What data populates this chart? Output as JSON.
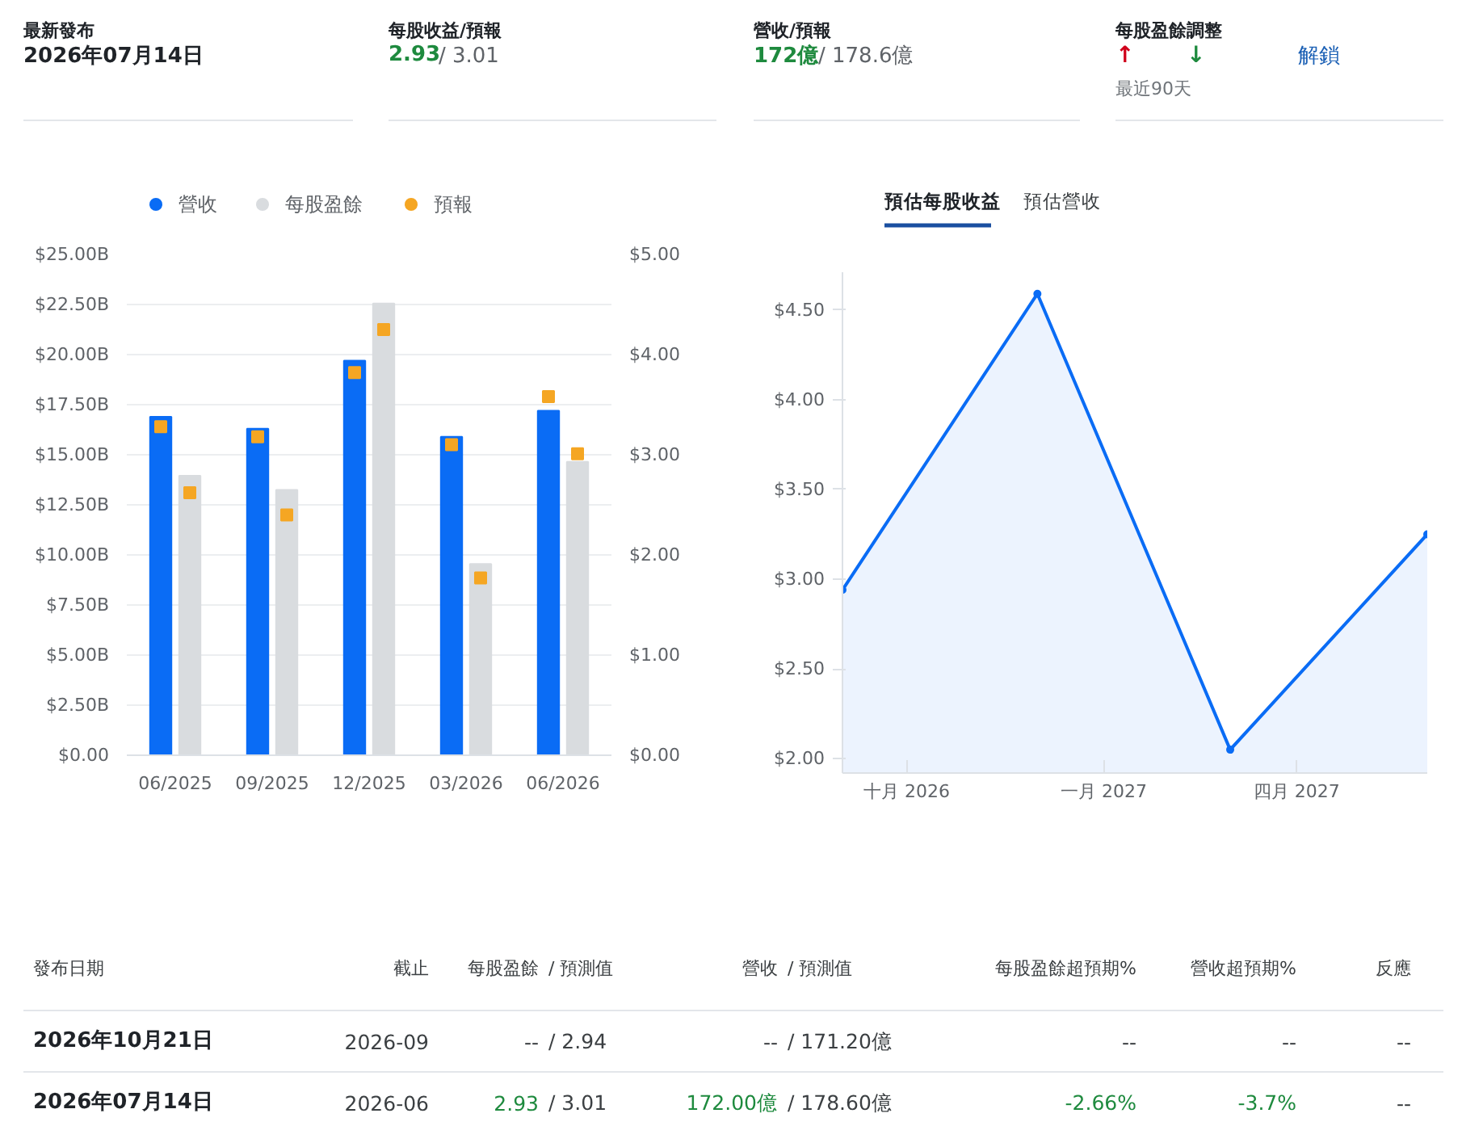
{
  "chart_data": [
    {
      "type": "other",
      "annotations": [
        "最新發布",
        "2026年07月14日",
        "每股收益/預報",
        "2.93",
        "/ 3.01",
        "營收/預報",
        "172億",
        "/ 178.6億",
        "每股盈餘調整",
        "↑",
        "↓",
        "解鎖",
        "最近90天"
      ],
      "colors": [
        "#1f2328",
        "#1f2328",
        "#1f2328",
        "#1e8a3e",
        "#5f6368",
        "#1f2328",
        "#1e8a3e",
        "#5f6368",
        "#1f2328",
        "#d0021b",
        "#1e8a3e",
        "#1a5fb4",
        "#70757a"
      ]
    },
    {
      "type": "bar",
      "categories": [
        "06/2025",
        "09/2025",
        "12/2025",
        "03/2026",
        "06/2026"
      ],
      "series": [
        {
          "name": "營收",
          "type": "bar",
          "color": "#0a6cf5",
          "values": [
            16.9,
            16.3,
            19.7,
            15.9,
            17.2
          ]
        },
        {
          "name": "每股盈餘",
          "type": "bar",
          "axis": "y2",
          "color": "#d9dcdf",
          "values": [
            2.79,
            2.65,
            4.51,
            1.91,
            2.93
          ]
        },
        {
          "name": "預報",
          "type": "scatter",
          "color": "#f5a623",
          "values": [
            16.4,
            15.9,
            19.1,
            15.5,
            17.9
          ]
        },
        {
          "type": "scatter",
          "axis": "y2",
          "color": "#f5a623",
          "values": [
            2.62,
            2.4,
            4.25,
            1.77,
            3.01
          ]
        }
      ],
      "ylim": [
        0,
        25
      ],
      "yticks": [
        {
          "value": 0,
          "label": "$0.00"
        },
        {
          "value": 2.5,
          "label": "$2.50B"
        },
        {
          "value": 5,
          "label": "$5.00B"
        },
        {
          "value": 7.5,
          "label": "$7.50B"
        },
        {
          "value": 10,
          "label": "$10.00B"
        },
        {
          "value": 12.5,
          "label": "$12.50B"
        },
        {
          "value": 15,
          "label": "$15.00B"
        },
        {
          "value": 17.5,
          "label": "$17.50B"
        },
        {
          "value": 20,
          "label": "$20.00B"
        },
        {
          "value": 22.5,
          "label": "$22.50B"
        },
        {
          "value": 25,
          "label": "$25.00B"
        }
      ],
      "y2lim": [
        0,
        5
      ],
      "y2ticks": [
        {
          "value": 0,
          "label": "$0.00"
        },
        {
          "value": 1,
          "label": "$1.00"
        },
        {
          "value": 2,
          "label": "$2.00"
        },
        {
          "value": 3,
          "label": "$3.00"
        },
        {
          "value": 4,
          "label": "$4.00"
        },
        {
          "value": 5,
          "label": "$5.00"
        }
      ],
      "grid": "y",
      "legend": "top left",
      "marker": "square"
    },
    {
      "type": "area",
      "annotations": [
        "預估每股收益",
        "預估營收"
      ],
      "x": [
        "2026-09-01",
        "2026-12-01",
        "2027-03-01",
        "2027-06-01"
      ],
      "series": [
        {
          "color": "#0a6cf5",
          "values": [
            2.94,
            4.59,
            2.05,
            3.25
          ]
        }
      ],
      "xlim": [
        "2026-09-01",
        "2027-06-01"
      ],
      "xticks": [
        {
          "value": "2026-10-01",
          "label": "十月 2026"
        },
        {
          "value": "2027-01-01",
          "label": "一月 2027"
        },
        {
          "value": "2027-04-01",
          "label": "四月 2027"
        }
      ],
      "ylim": [
        1.92,
        4.71
      ],
      "yticks": [
        {
          "value": 2,
          "label": "$2.00"
        },
        {
          "value": 2.5,
          "label": "$2.50"
        },
        {
          "value": 3,
          "label": "$3.00"
        },
        {
          "value": 3.5,
          "label": "$3.50"
        },
        {
          "value": 4,
          "label": "$4.00"
        },
        {
          "value": 4.5,
          "label": "$4.50"
        }
      ],
      "marker": "circle",
      "grid": false
    },
    {
      "type": "other",
      "categories": [
        "發布日期",
        "截止",
        "每股盈餘",
        "/  預測值",
        "營收",
        "/  預測值",
        "每股盈餘超預期%",
        "營收超預期%",
        "反應"
      ],
      "annotations": [
        "2026年10月21日",
        "2026-09",
        "--",
        "/  2.94",
        "--",
        "/  171.20億",
        "--",
        "--",
        "--",
        "2026年07月14日",
        "2026-06",
        "2.93",
        "/  3.01",
        "172.00億",
        "/  178.60億",
        "-2.66%",
        "-3.7%",
        "--"
      ]
    }
  ]
}
